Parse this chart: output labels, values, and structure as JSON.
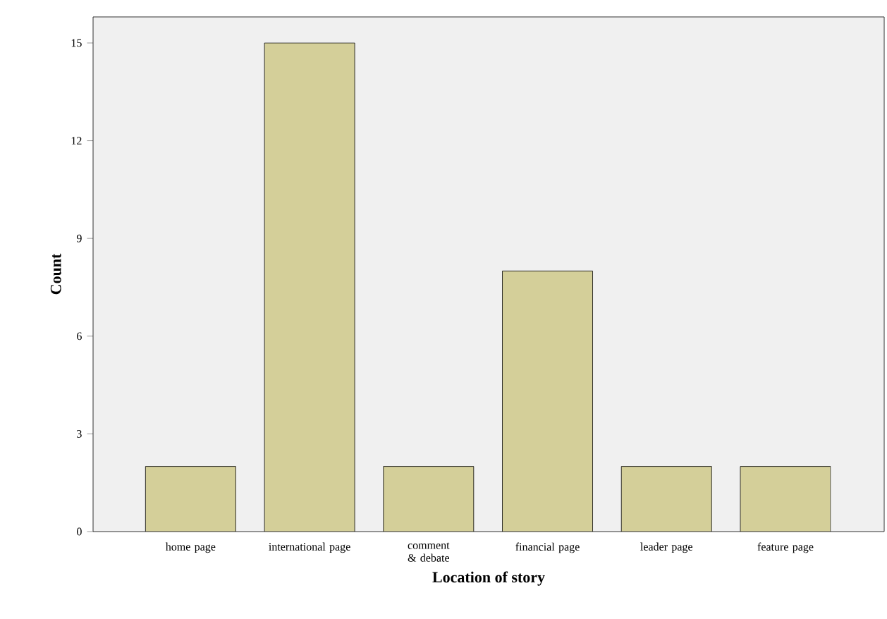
{
  "chart_data": {
    "type": "bar",
    "xlabel": "Location of story",
    "ylabel": "Count",
    "categories": [
      "home page",
      "international page",
      "comment & debate",
      "financial page",
      "leader page",
      "feature page"
    ],
    "values": [
      2,
      15,
      2,
      8,
      2,
      2
    ],
    "color": "#d4cf99",
    "ylim": [
      0,
      15.8
    ],
    "yticks": [
      0,
      3,
      6,
      9,
      12,
      15
    ]
  }
}
